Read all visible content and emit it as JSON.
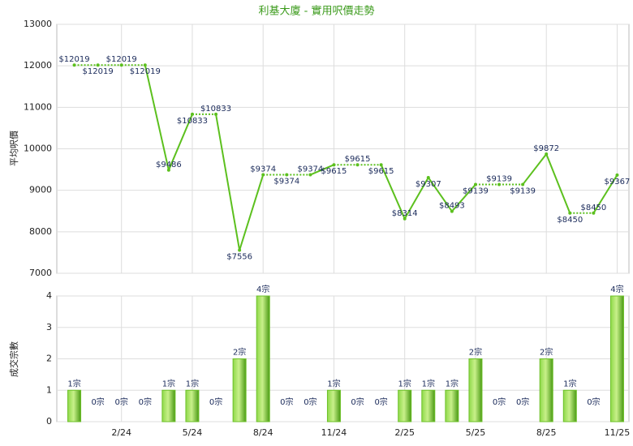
{
  "chart_data": [
    {
      "type": "line",
      "title": "利基大廈 - 實用呎價走勢",
      "y_label": "平均呎價",
      "color": "#5cc01e",
      "values": [
        12019,
        12019,
        12019,
        12019,
        9486,
        10833,
        10833,
        7556,
        9374,
        9374,
        9374,
        9615,
        9615,
        9615,
        8314,
        9307,
        8493,
        9139,
        9139,
        9139,
        9872,
        8450,
        8450,
        9367
      ],
      "value_labels": [
        "$12019",
        "$12019",
        "$12019",
        "$12019",
        "$9486",
        "$10833",
        "$10833",
        "$7556",
        "$9374",
        "$9374",
        "$9374",
        "$9615",
        "$9615",
        "$9615",
        "$8314",
        "$9307",
        "$8493",
        "$9139",
        "$9139",
        "$9139",
        "$9872",
        "$8450",
        "$8450",
        "$9367"
      ],
      "ylim": [
        7000,
        13000
      ],
      "yticks": [
        7000,
        8000,
        9000,
        10000,
        11000,
        12000,
        13000
      ],
      "grid": true
    },
    {
      "type": "bar",
      "y_label": "成交宗數",
      "color": "#6cc028",
      "categories": [
        null,
        null,
        "2/24",
        null,
        null,
        "5/24",
        null,
        null,
        "8/24",
        null,
        null,
        "11/24",
        null,
        null,
        "2/25",
        null,
        null,
        "5/25",
        null,
        null,
        "8/25",
        null,
        null,
        "11/25"
      ],
      "values": [
        1,
        0,
        0,
        0,
        1,
        1,
        0,
        2,
        4,
        0,
        0,
        1,
        0,
        0,
        1,
        1,
        1,
        2,
        0,
        0,
        2,
        1,
        0,
        4
      ],
      "value_labels": [
        "1宗",
        "0宗",
        "0宗",
        "0宗",
        "1宗",
        "1宗",
        "0宗",
        "2宗",
        "4宗",
        "0宗",
        "0宗",
        "1宗",
        "0宗",
        "0宗",
        "1宗",
        "1宗",
        "1宗",
        "2宗",
        "0宗",
        "0宗",
        "2宗",
        "1宗",
        "0宗",
        "4宗"
      ],
      "ylim": [
        0,
        4
      ],
      "yticks": [
        0,
        1,
        2,
        3,
        4
      ],
      "grid": true
    }
  ]
}
